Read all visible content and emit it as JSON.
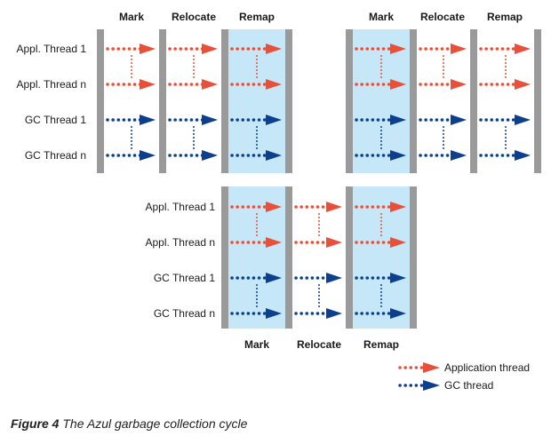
{
  "colors": {
    "app_thread": "#e8503a",
    "gc_thread": "#0d3f8f",
    "remap_band": "#c6e7f7",
    "barrier": "#9a9a9a"
  },
  "top_phases": [
    "Mark",
    "Relocate",
    "Remap",
    "Mark",
    "Relocate",
    "Remap"
  ],
  "bottom_phases": [
    "Mark",
    "Relocate",
    "Remap"
  ],
  "top_threads": [
    "Appl. Thread 1",
    "Appl. Thread n",
    "GC Thread 1",
    "GC Thread n"
  ],
  "bottom_threads": [
    "Appl. Thread 1",
    "Appl. Thread n",
    "GC Thread 1",
    "GC Thread n"
  ],
  "legend": {
    "app_label": "Application thread",
    "gc_label": "GC thread"
  },
  "caption": {
    "figure": "Figure 4",
    "text": "The Azul garbage collection cycle"
  }
}
